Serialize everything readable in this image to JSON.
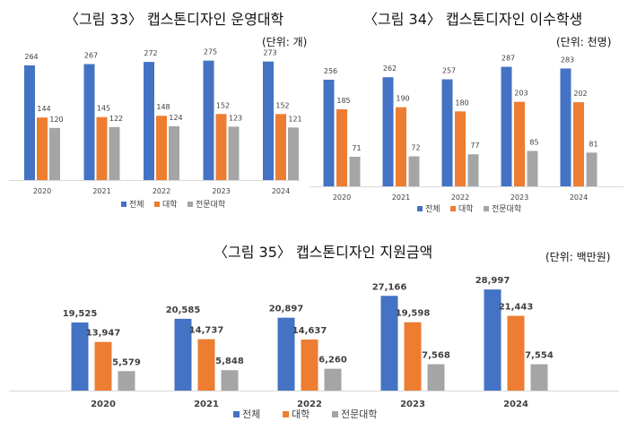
{
  "colors": {
    "total": "#4472C4",
    "university": "#ED7D31",
    "college": "#A5A5A5"
  },
  "chart_data": [
    {
      "type": "bar",
      "title": "〈그림 33〉 캡스톤디자인 운영대학",
      "unit": "(단위: 개)",
      "categories": [
        "2020",
        "2021",
        "2022",
        "2023",
        "2024"
      ],
      "series": [
        {
          "name": "전체",
          "values": [
            264,
            267,
            272,
            275,
            273
          ]
        },
        {
          "name": "대학",
          "values": [
            144,
            145,
            148,
            152,
            152
          ]
        },
        {
          "name": "전문대학",
          "values": [
            120,
            122,
            124,
            123,
            121
          ]
        }
      ],
      "legend": "bottom",
      "grid": false,
      "ylim": [
        0,
        280
      ]
    },
    {
      "type": "bar",
      "title": "〈그림 34〉 캡스톤디자인 이수학생",
      "unit": "(단위: 천명)",
      "categories": [
        "2020",
        "2021",
        "2022",
        "2023",
        "2024"
      ],
      "series": [
        {
          "name": "전체",
          "values": [
            256,
            262,
            257,
            287,
            283
          ]
        },
        {
          "name": "대학",
          "values": [
            185,
            190,
            180,
            203,
            202
          ]
        },
        {
          "name": "전문대학",
          "values": [
            71,
            72,
            77,
            85,
            81
          ]
        }
      ],
      "legend": "bottom",
      "grid": false,
      "ylim": [
        0,
        300
      ]
    },
    {
      "type": "bar",
      "title": "〈그림 35〉 캡스톤디자인 지원금액",
      "unit": "(단위: 백만원)",
      "categories": [
        "2020",
        "2021",
        "2022",
        "2023",
        "2024"
      ],
      "series": [
        {
          "name": "전체",
          "values": [
            19525,
            20585,
            20897,
            27166,
            28997
          ]
        },
        {
          "name": "대학",
          "values": [
            13947,
            14737,
            14637,
            19598,
            21443
          ]
        },
        {
          "name": "전문대학",
          "values": [
            5579,
            5848,
            6260,
            7568,
            7554
          ]
        }
      ],
      "legend": "bottom",
      "grid": false,
      "ylim": [
        0,
        30000
      ]
    }
  ]
}
